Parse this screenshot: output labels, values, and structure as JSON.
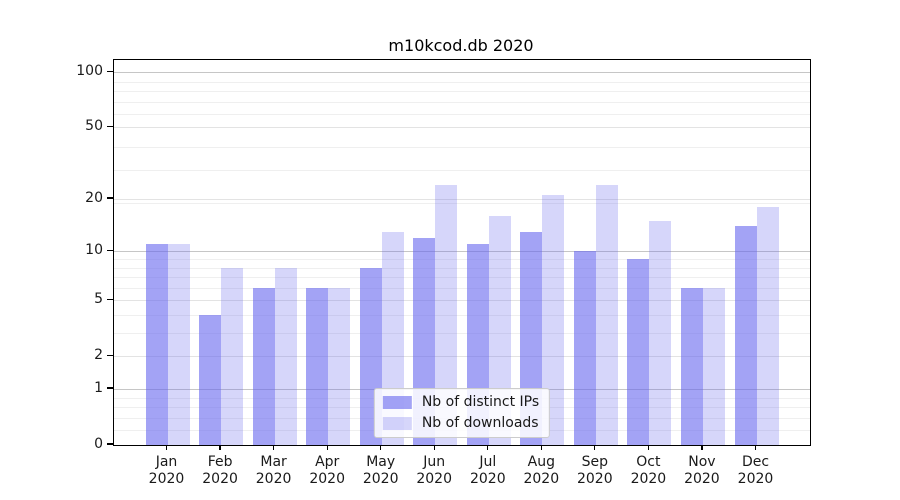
{
  "figure": {
    "title": "m10kcod.db 2020"
  },
  "chart_data": {
    "type": "bar",
    "title": "m10kcod.db 2020",
    "categories": [
      "Jan\n2020",
      "Feb\n2020",
      "Mar\n2020",
      "Apr\n2020",
      "May\n2020",
      "Jun\n2020",
      "Jul\n2020",
      "Aug\n2020",
      "Sep\n2020",
      "Oct\n2020",
      "Nov\n2020",
      "Dec\n2020"
    ],
    "series": [
      {
        "name": "Nb of distinct IPs",
        "values": [
          11,
          4,
          6,
          6,
          8,
          12,
          11,
          13,
          10,
          9,
          6,
          14
        ],
        "color": "rgba(102,102,238,0.60)"
      },
      {
        "name": "Nb of downloads",
        "values": [
          11,
          8,
          8,
          6,
          13,
          24,
          16,
          21,
          24,
          15,
          6,
          18
        ],
        "color": "rgba(102,102,238,0.27)"
      }
    ],
    "xlabel": "",
    "ylabel": "",
    "y_axis": {
      "scale": "log1p",
      "tick_values": [
        0,
        1,
        2,
        5,
        10,
        20,
        50,
        100
      ],
      "tick_labels": [
        "0",
        "1",
        "2",
        "5",
        "10",
        "20",
        "50",
        "100"
      ],
      "max_exponent": 2.07
    },
    "grid": {
      "major_values": [
        1,
        10,
        100
      ],
      "labeled_values": [
        2,
        5,
        20,
        50
      ],
      "minor_values": [
        0.2,
        0.4,
        0.6,
        0.8,
        3,
        4,
        6,
        7,
        8,
        9,
        19,
        29,
        39,
        59,
        69,
        79,
        89
      ]
    },
    "legend": {
      "position": "lower center",
      "entries": [
        "Nb of distinct IPs",
        "Nb of downloads"
      ]
    }
  },
  "colors": {
    "bar_distinct_ips": "rgba(102,102,238,0.60)",
    "bar_downloads": "rgba(102,102,238,0.27)",
    "grid_major": "#c6c6c6",
    "grid_labeled": "#e3e3e3",
    "grid_minor": "#efefef",
    "spine": "#000000",
    "text": "#1a1a1a",
    "legend_bg": "rgba(255,255,255,0.85)",
    "legend_border": "#cccccc"
  }
}
